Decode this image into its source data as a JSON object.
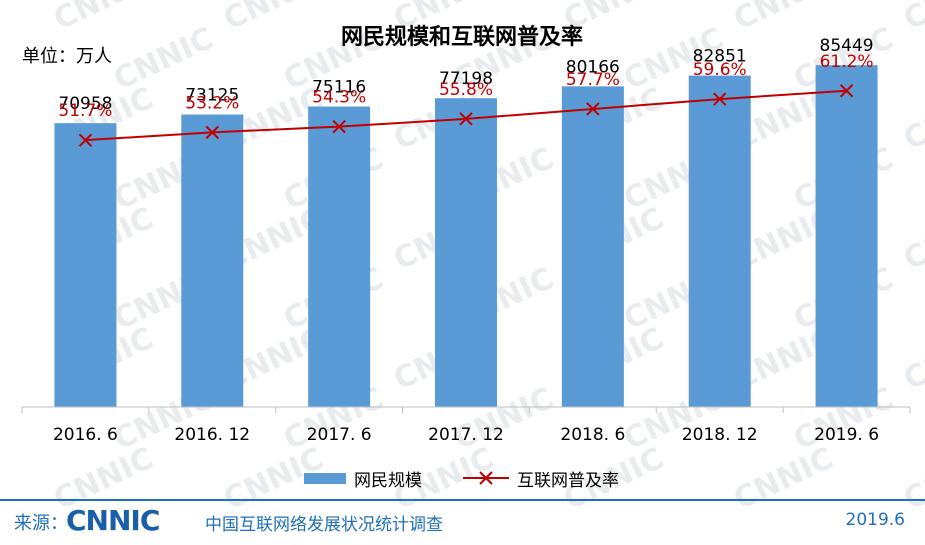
{
  "chart_data": {
    "type": "bar",
    "title": "网民规模和互联网普及率",
    "unit_label": "单位：万人",
    "categories": [
      "2016. 6",
      "2016. 12",
      "2017. 6",
      "2017. 12",
      "2018. 6",
      "2018. 12",
      "2019. 6"
    ],
    "series": [
      {
        "name": "网民规模",
        "kind": "bar",
        "color": "#5b9bd5",
        "values": [
          70958,
          73125,
          75116,
          77198,
          80166,
          82851,
          85449
        ],
        "labels": [
          "70958",
          "73125",
          "75116",
          "77198",
          "80166",
          "82851",
          "85449"
        ]
      },
      {
        "name": "互联网普及率",
        "kind": "line",
        "marker": "x",
        "color": "#c00000",
        "values": [
          51.7,
          53.2,
          54.3,
          55.8,
          57.7,
          59.6,
          61.2
        ],
        "labels": [
          "51.7%",
          "53.2%",
          "54.3%",
          "55.8%",
          "57.7%",
          "59.6%",
          "61.2%"
        ]
      }
    ],
    "ylim": [
      0,
      100000
    ],
    "y2lim": [
      0,
      100
    ],
    "grid": false,
    "legend_position": "bottom",
    "watermark": "CNNIC"
  },
  "footer": {
    "source_label": "来源：",
    "logo_text": "CNNIC",
    "report_name": "中国互联网络发展状况统计调查",
    "date": "2019.6"
  }
}
